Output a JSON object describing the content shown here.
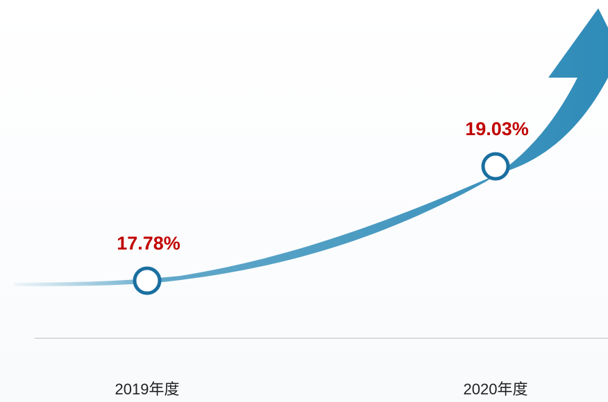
{
  "chart_data": {
    "type": "line",
    "categories": [
      "2019年度",
      "2020年度"
    ],
    "values": [
      17.78,
      19.03
    ],
    "value_labels": [
      "17.78%",
      "19.03%"
    ],
    "color": "#1a6fa0",
    "label_color": "#c00000"
  }
}
